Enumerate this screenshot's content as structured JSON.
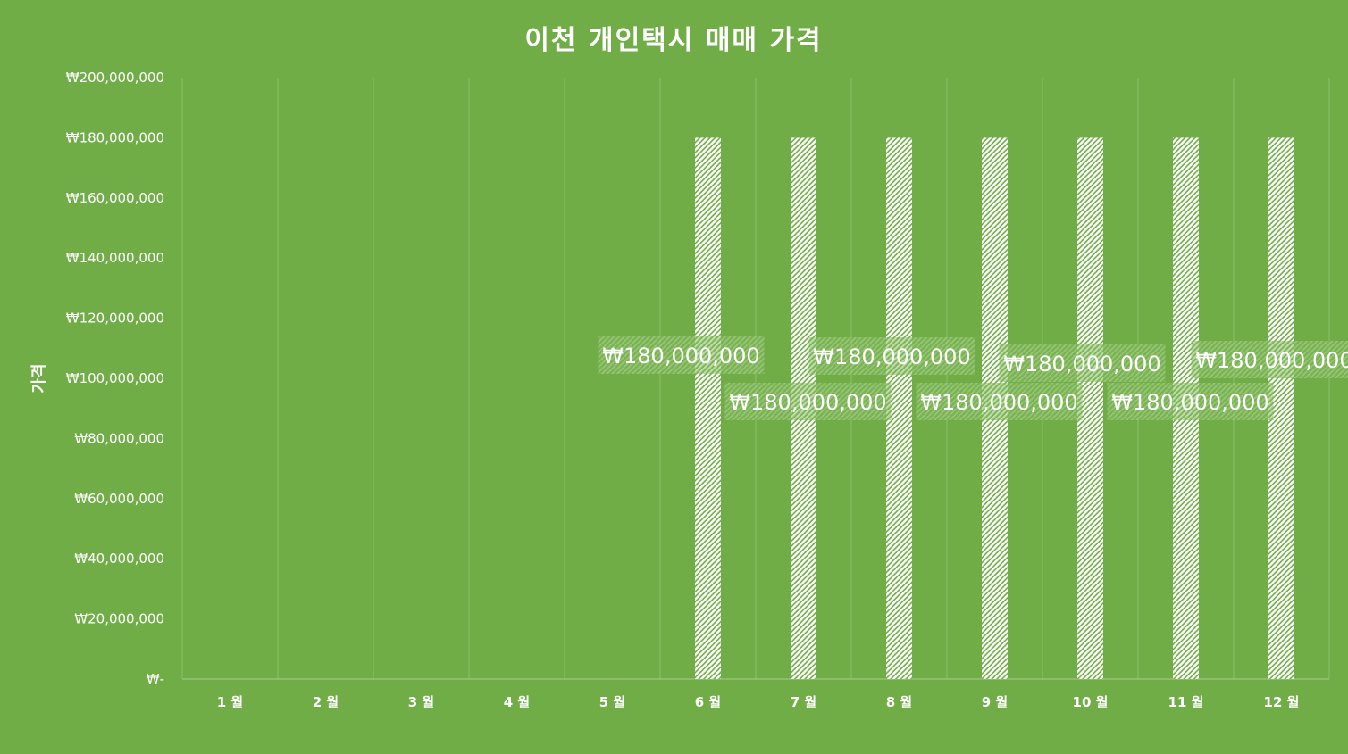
{
  "chart_data": {
    "type": "bar",
    "title": "이천 개인택시 매매 가격",
    "xlabel": "",
    "ylabel": "가격",
    "categories": [
      "1 월",
      "2 월",
      "3 월",
      "4 월",
      "5 월",
      "6 월",
      "7 월",
      "8 월",
      "9 월",
      "10 월",
      "11 월",
      "12 월"
    ],
    "series": [
      {
        "values": [
          null,
          null,
          null,
          null,
          null,
          180000000,
          180000000,
          180000000,
          180000000,
          180000000,
          180000000,
          180000000
        ],
        "data_labels": [
          "",
          "",
          "",
          "",
          "",
          "₩180,000,000",
          "₩180,000,000",
          "₩180,000,000",
          "₩180,000,000",
          "₩180,000,000",
          "₩180,000,000",
          "₩180,000,000"
        ]
      }
    ],
    "ylim": [
      0,
      200000000
    ],
    "y_ticks": [
      0,
      20000000,
      40000000,
      60000000,
      80000000,
      100000000,
      120000000,
      140000000,
      160000000,
      180000000,
      200000000
    ],
    "y_tick_labels": [
      "₩-",
      "₩20,000,000",
      "₩40,000,000",
      "₩60,000,000",
      "₩80,000,000",
      "₩100,000,000",
      "₩120,000,000",
      "₩140,000,000",
      "₩160,000,000",
      "₩180,000,000",
      "₩200,000,000"
    ],
    "grid": "vertical",
    "legend": "none",
    "colors": {
      "background": "#70AD47",
      "bar_pattern_fg": "#FFFFFF",
      "bar_pattern_bg": "#70AD47",
      "text": "#FFFFFF",
      "gridline": "#8FC06E"
    }
  }
}
